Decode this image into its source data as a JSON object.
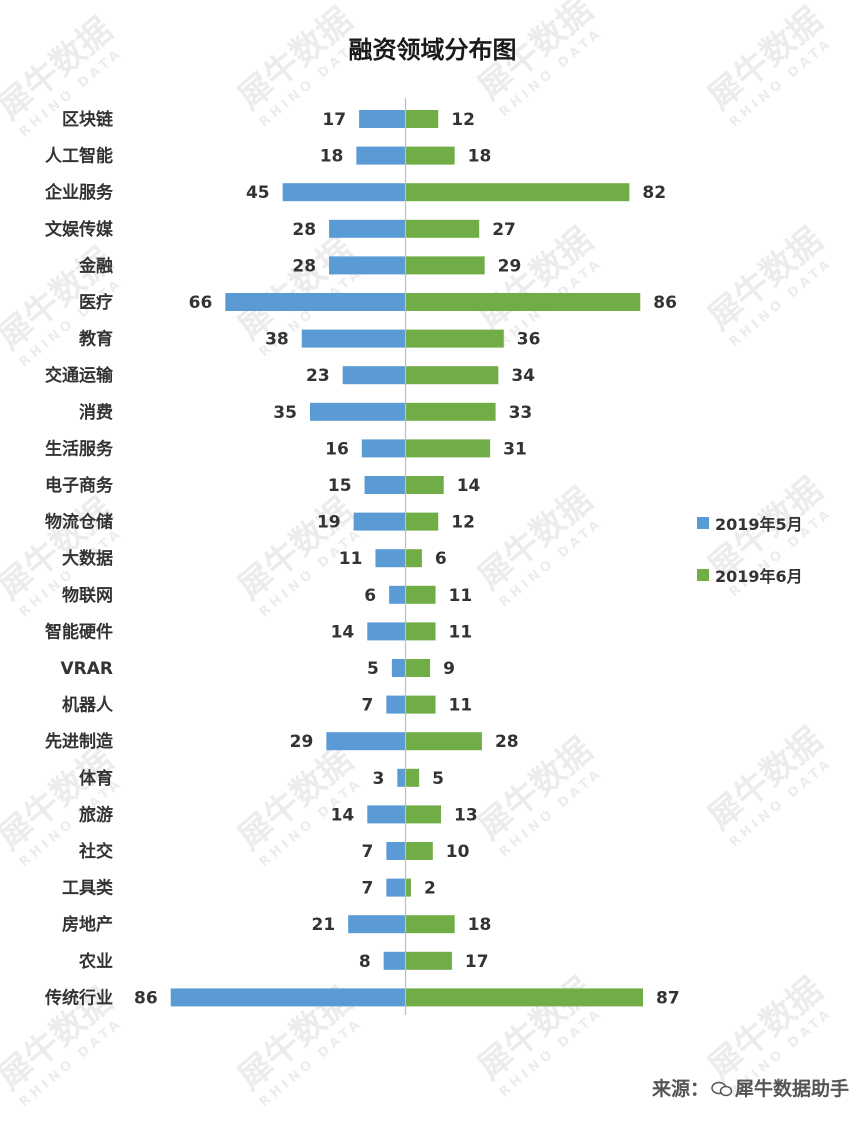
{
  "chart_data": {
    "type": "bar",
    "orientation": "horizontal-diverging",
    "title": "融资领域分布图",
    "categories": [
      "区块链",
      "人工智能",
      "企业服务",
      "文娱传媒",
      "金融",
      "医疗",
      "教育",
      "交通运输",
      "消费",
      "生活服务",
      "电子商务",
      "物流仓储",
      "大数据",
      "物联网",
      "智能硬件",
      "VRAR",
      "机器人",
      "先进制造",
      "体育",
      "旅游",
      "社交",
      "工具类",
      "房地产",
      "农业",
      "传统行业"
    ],
    "series": [
      {
        "name": "2019年5月",
        "color": "#5B9BD5",
        "side": "left",
        "values": [
          17,
          18,
          45,
          28,
          28,
          66,
          38,
          23,
          35,
          16,
          15,
          19,
          11,
          6,
          14,
          5,
          7,
          29,
          3,
          14,
          7,
          7,
          21,
          8,
          86
        ]
      },
      {
        "name": "2019年6月",
        "color": "#70AD47",
        "side": "right",
        "values": [
          12,
          18,
          82,
          27,
          29,
          86,
          36,
          34,
          33,
          31,
          14,
          12,
          6,
          11,
          11,
          9,
          11,
          28,
          5,
          13,
          10,
          2,
          18,
          17,
          87
        ]
      }
    ],
    "data_labels": true,
    "legend_position": "right"
  },
  "source": {
    "prefix": "来源：",
    "suffix": "犀牛数据助手"
  },
  "watermark": {
    "text": "犀牛数据",
    "subtext": "RHINO DATA"
  },
  "icons": {
    "source": "wechat-icon"
  }
}
